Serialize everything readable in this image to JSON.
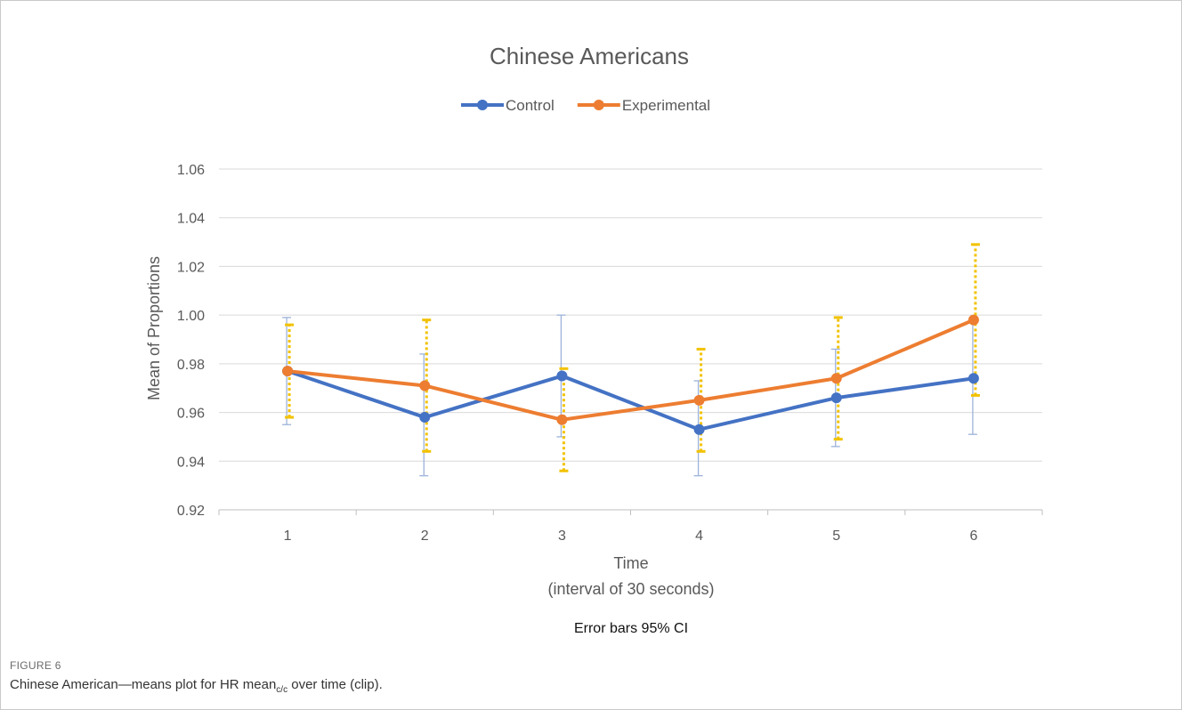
{
  "figure": {
    "label": "FIGURE 6",
    "caption_prefix": "Chinese American—means plot for HR mean",
    "caption_sub": "c/c",
    "caption_suffix": " over time (clip)."
  },
  "chart_data": {
    "type": "line",
    "title": "Chinese Americans",
    "xlabel": [
      "Time",
      "(interval of 30 seconds)"
    ],
    "ylabel": "Mean of Proportions",
    "note": "Error bars 95% CI",
    "categories": [
      "1",
      "2",
      "3",
      "4",
      "5",
      "6"
    ],
    "ylim": [
      0.92,
      1.06
    ],
    "yticks": [
      "0.92",
      "0.94",
      "0.96",
      "0.98",
      "1.00",
      "1.02",
      "1.04",
      "1.06"
    ],
    "grid": true,
    "legend_position": "top-center",
    "series": [
      {
        "name": "Control",
        "color": "#4472c4",
        "errorbar_color": "#9db3da",
        "errorbar_style": "solid",
        "values": [
          0.977,
          0.958,
          0.975,
          0.953,
          0.966,
          0.974
        ],
        "ci_low": [
          0.955,
          0.934,
          0.95,
          0.934,
          0.946,
          0.951
        ],
        "ci_high": [
          0.999,
          0.984,
          1.0,
          0.973,
          0.986,
          0.997
        ]
      },
      {
        "name": "Experimental",
        "color": "#ed7d31",
        "errorbar_color": "#f2c200",
        "errorbar_style": "dotted",
        "values": [
          0.977,
          0.971,
          0.957,
          0.965,
          0.974,
          0.998
        ],
        "ci_low": [
          0.958,
          0.944,
          0.936,
          0.944,
          0.949,
          0.967
        ],
        "ci_high": [
          0.996,
          0.998,
          0.978,
          0.986,
          0.999,
          1.029
        ]
      }
    ]
  }
}
